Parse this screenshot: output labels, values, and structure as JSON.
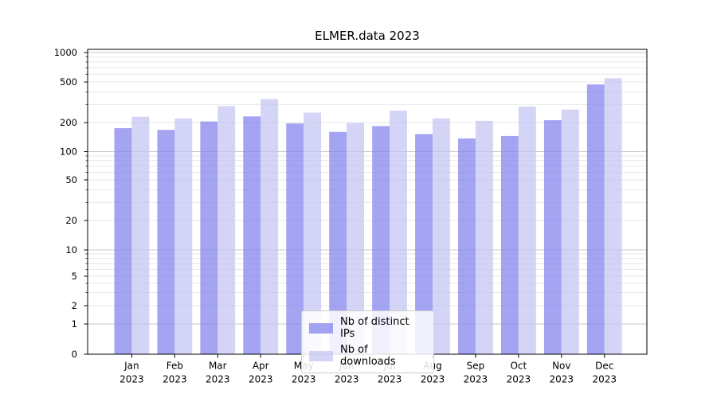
{
  "chart_data": {
    "type": "bar",
    "title": "ELMER.data 2023",
    "months": [
      "Jan",
      "Feb",
      "Mar",
      "Apr",
      "May",
      "Jun",
      "Jul",
      "Aug",
      "Sep",
      "Oct",
      "Nov",
      "Dec"
    ],
    "year": "2023",
    "yticks": [
      0,
      1,
      2,
      5,
      10,
      20,
      50,
      100,
      200,
      500,
      1000
    ],
    "ylim": [
      0,
      1000
    ],
    "yscale": "symlog",
    "grid": "horizontal-major-and-minor",
    "legend_position": "inside-bottom-center",
    "series": [
      {
        "name": "Nb of distinct IPs",
        "color": "#8181ee",
        "values": [
          175,
          168,
          205,
          230,
          196,
          160,
          184,
          152,
          137,
          145,
          211,
          473
        ]
      },
      {
        "name": "Nb of downloads",
        "color": "#c3c3f2",
        "values": [
          228,
          219,
          290,
          340,
          250,
          198,
          262,
          220,
          208,
          287,
          268,
          545
        ]
      }
    ]
  }
}
